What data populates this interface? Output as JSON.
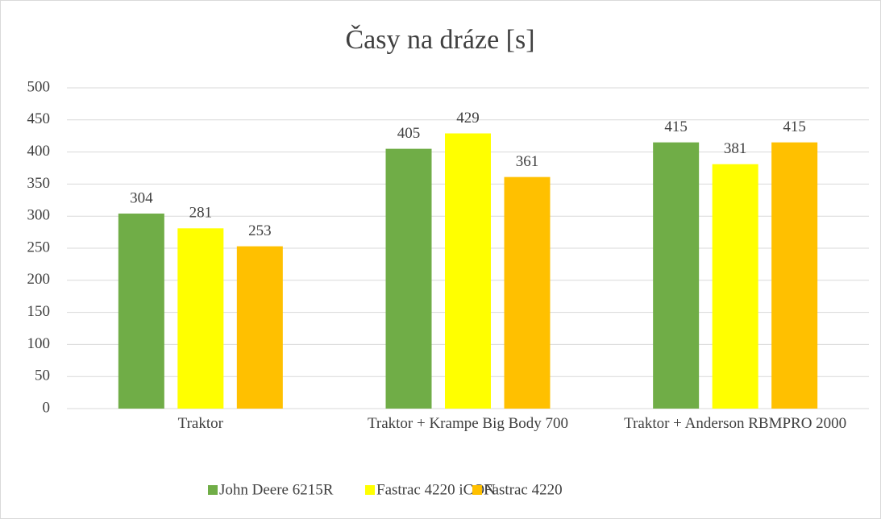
{
  "chart_data": {
    "type": "bar",
    "title": "Časy na dráze [s]",
    "categories": [
      "Traktor",
      "Traktor + Krampe Big Body 700",
      "Traktor + Anderson RBMPRO 2000"
    ],
    "series": [
      {
        "name": "John Deere 6215R",
        "color": "#70ad47",
        "values": [
          304,
          405,
          415
        ]
      },
      {
        "name": "Fastrac 4220 iCON",
        "color": "#ffff00",
        "values": [
          281,
          429,
          381
        ]
      },
      {
        "name": "Fastrac 4220",
        "color": "#ffc000",
        "values": [
          253,
          361,
          415
        ]
      }
    ],
    "ylim": [
      0,
      500
    ],
    "yticks": [
      0,
      50,
      100,
      150,
      200,
      250,
      300,
      350,
      400,
      450,
      500
    ],
    "grid": true,
    "legend": "bottom"
  }
}
